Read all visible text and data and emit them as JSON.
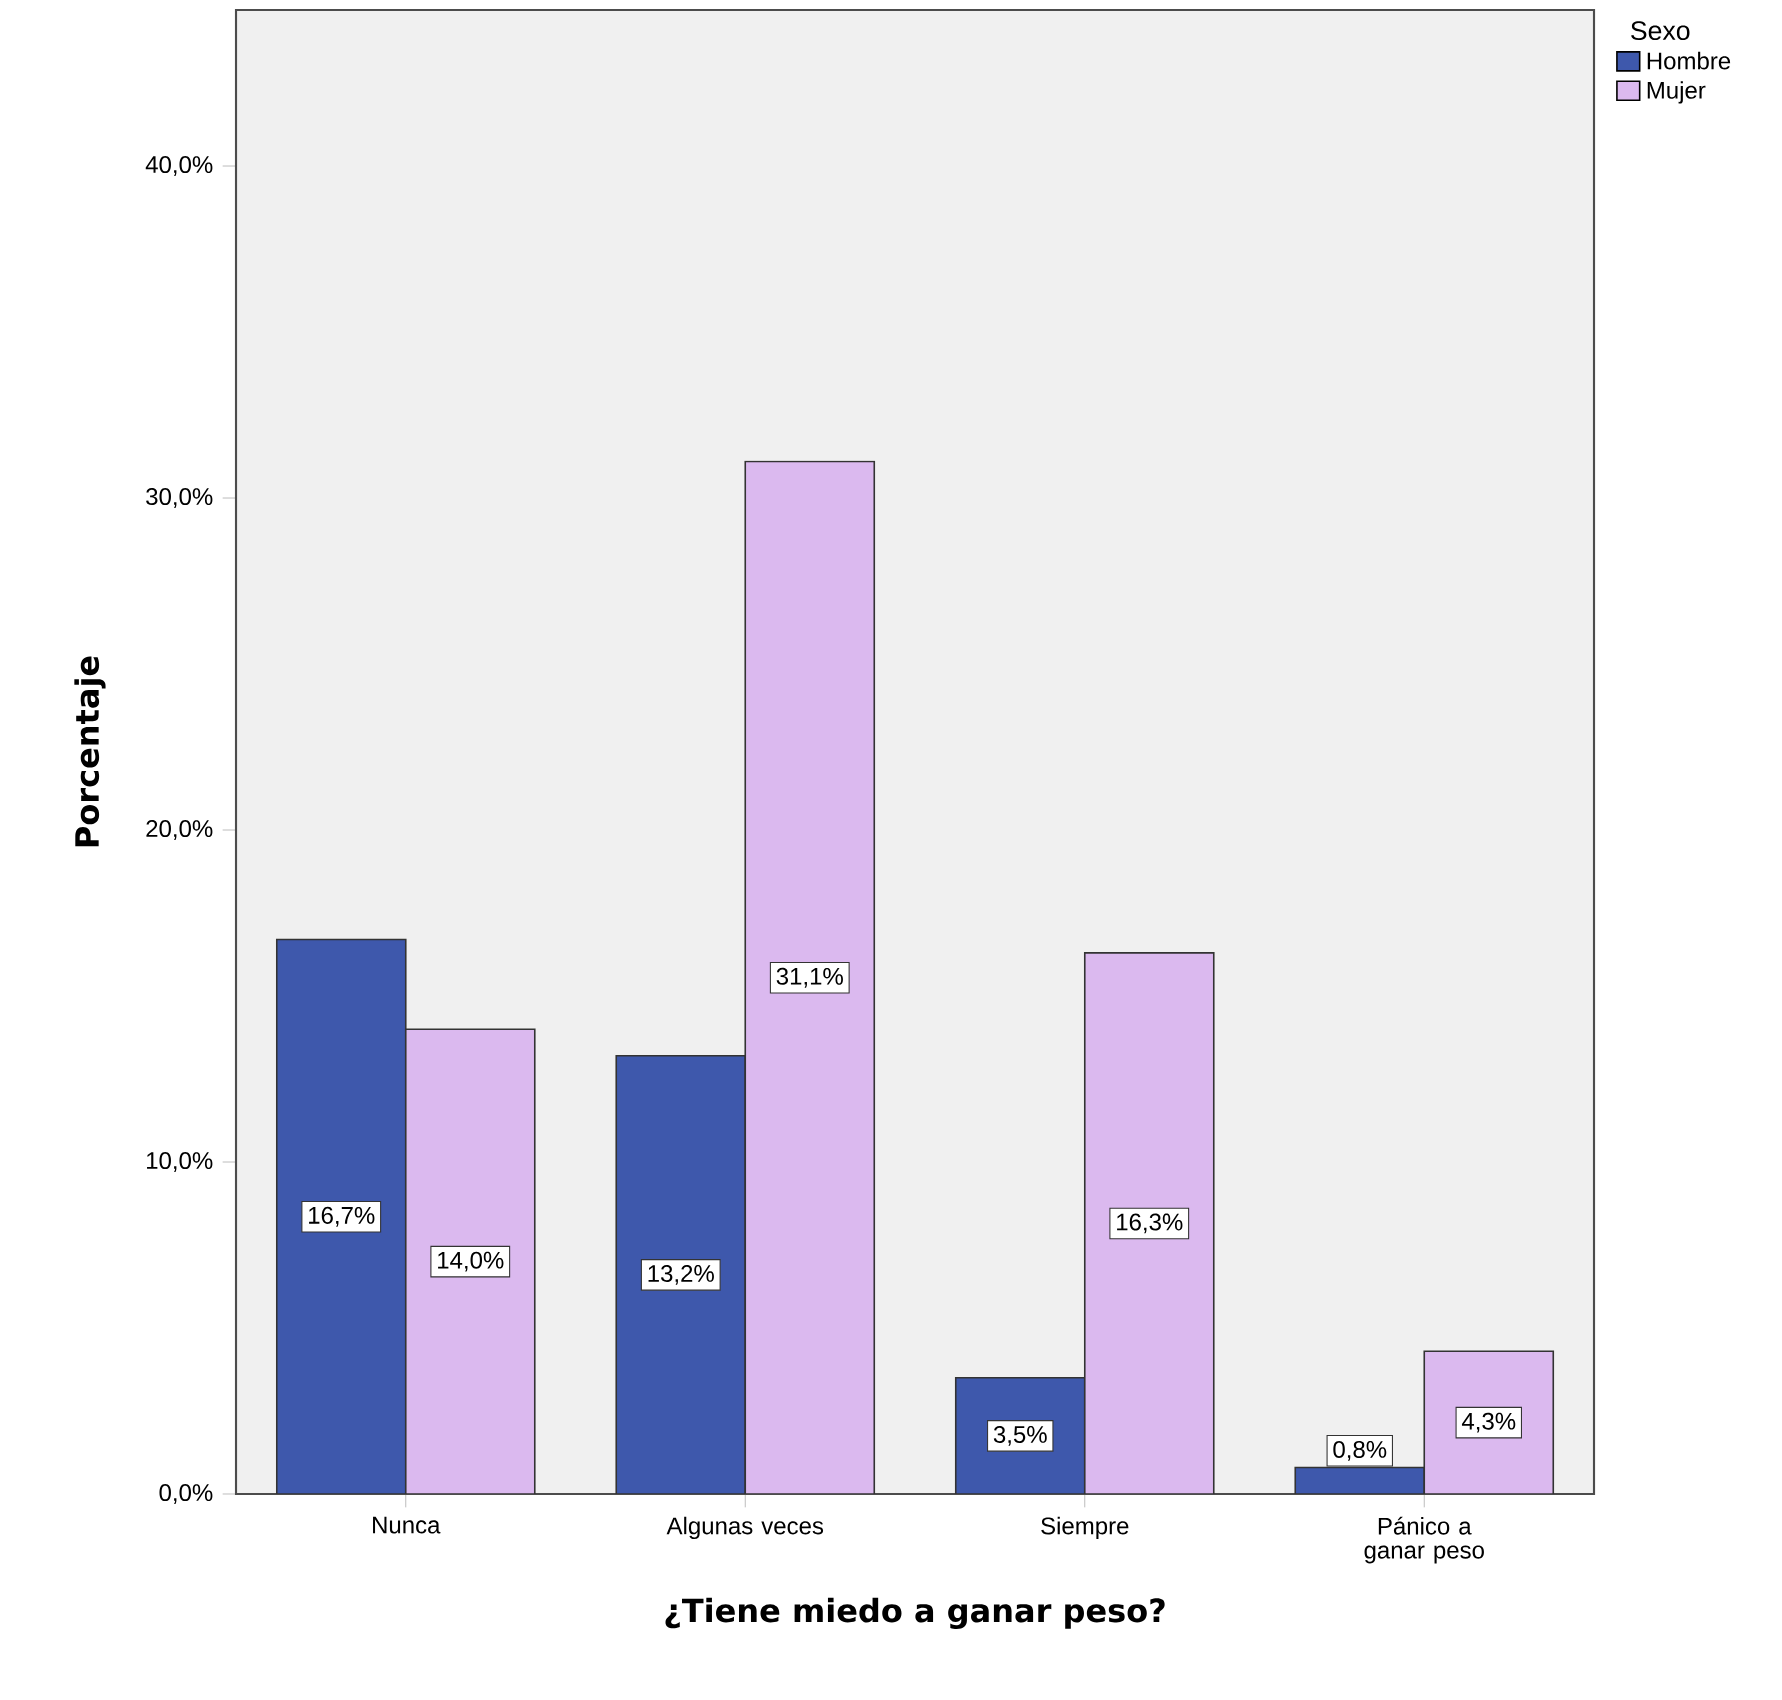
{
  "chart_data": {
    "type": "bar",
    "xlabel": "¿Tiene miedo a ganar peso?",
    "ylabel": "Porcentaje",
    "legend_title": "Sexo",
    "categories": [
      "Nunca",
      "Algunas veces",
      "Siempre",
      "Pánico a ganar peso"
    ],
    "series": [
      {
        "name": "Hombre",
        "color": "#3e58ac",
        "values": [
          16.7,
          13.2,
          3.5,
          0.8
        ],
        "value_labels": [
          "16,7%",
          "13,2%",
          "3,5%",
          "0,8%"
        ]
      },
      {
        "name": "Mujer",
        "color": "#dbb9ef",
        "values": [
          14.0,
          31.1,
          16.3,
          4.3
        ],
        "value_labels": [
          "14,0%",
          "31,1%",
          "16,3%",
          "4,3%"
        ]
      }
    ],
    "ylim": [
      0,
      44.7
    ],
    "yticks": [
      {
        "value": 0,
        "label": "0,0%"
      },
      {
        "value": 10,
        "label": "10,0%"
      },
      {
        "value": 20,
        "label": "20,0%"
      },
      {
        "value": 30,
        "label": "30,0%"
      },
      {
        "value": 40,
        "label": "40,0%"
      }
    ],
    "legend": "top right",
    "grid": false
  }
}
